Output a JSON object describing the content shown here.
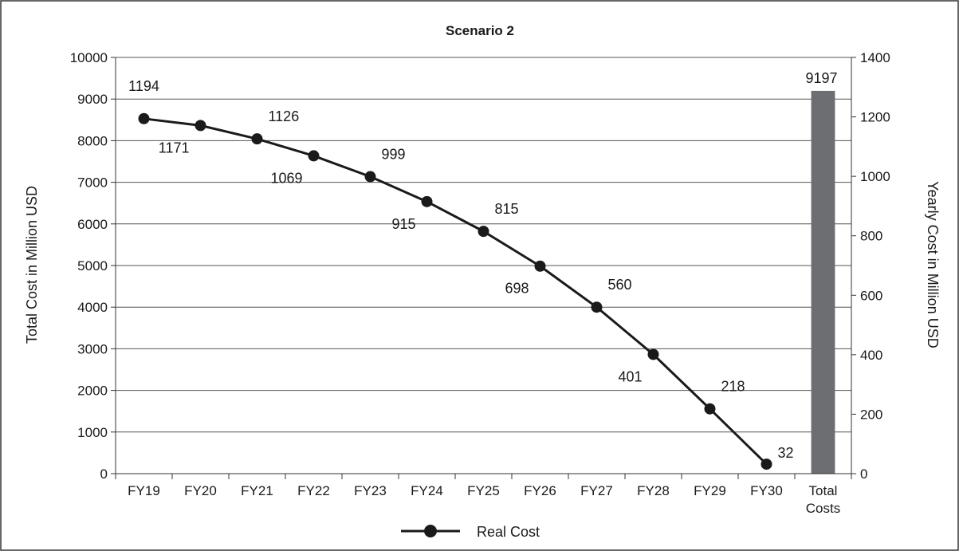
{
  "chart_data": {
    "type": "line",
    "title": "Scenario 2",
    "categories": [
      "FY19",
      "FY20",
      "FY21",
      "FY22",
      "FY23",
      "FY24",
      "FY25",
      "FY26",
      "FY27",
      "FY28",
      "FY29",
      "FY30",
      "Total Costs"
    ],
    "ylabel_left": "Total Cost in Million USD",
    "ylabel_right": "Yearly Cost in Million USD",
    "ylim_left": [
      0,
      10000
    ],
    "yticks_left": [
      0,
      1000,
      2000,
      3000,
      4000,
      5000,
      6000,
      7000,
      8000,
      9000,
      10000
    ],
    "ylim_right": [
      0,
      1400
    ],
    "yticks_right": [
      0,
      200,
      400,
      600,
      800,
      1000,
      1200,
      1400
    ],
    "grid": true,
    "legend_position": "bottom",
    "series": [
      {
        "name": "Real Cost",
        "type": "line",
        "axis": "right",
        "color": "#1a1a1a",
        "x": [
          "FY19",
          "FY20",
          "FY21",
          "FY22",
          "FY23",
          "FY24",
          "FY25",
          "FY26",
          "FY27",
          "FY28",
          "FY29",
          "FY30"
        ],
        "values": [
          1194,
          1171,
          1126,
          1069,
          999,
          915,
          815,
          698,
          560,
          401,
          218,
          32
        ]
      },
      {
        "name": "Total Costs",
        "type": "bar",
        "axis": "left",
        "color": "#6d6e71",
        "x": [
          "Total Costs"
        ],
        "values": [
          9197
        ]
      }
    ]
  }
}
